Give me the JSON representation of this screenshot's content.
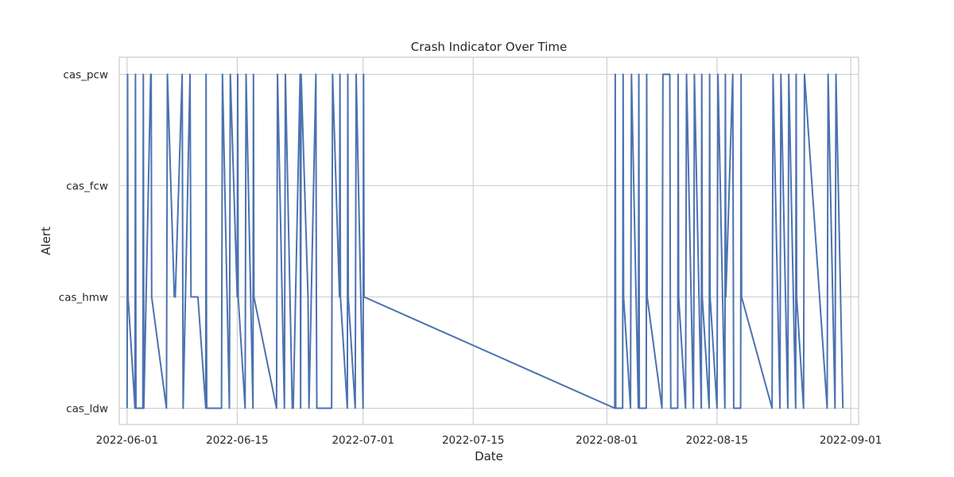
{
  "chart_data": {
    "type": "line",
    "title": "Crash Indicator Over Time",
    "xlabel": "Date",
    "ylabel": "Alert",
    "x_ticks": [
      "2022-06-01",
      "2022-06-15",
      "2022-07-01",
      "2022-07-15",
      "2022-08-01",
      "2022-08-15",
      "2022-09-01"
    ],
    "categories_y": [
      "cas_ldw",
      "cas_hmw",
      "cas_fcw",
      "cas_pcw"
    ],
    "x_range": [
      "2022-05-31",
      "2022-09-02"
    ],
    "grid": true,
    "line_color": "#4c72b0",
    "series": [
      {
        "x": [
          "2022-06-01",
          "2022-06-01",
          "2022-06-01",
          "2022-06-02",
          "2022-06-02",
          "2022-06-02",
          "2022-06-03",
          "2022-06-03",
          "2022-06-03",
          "2022-06-04",
          "2022-06-04",
          "2022-06-04",
          "2022-06-06",
          "2022-06-06",
          "2022-06-07",
          "2022-06-07",
          "2022-06-08",
          "2022-06-08",
          "2022-06-09",
          "2022-06-09",
          "2022-06-10",
          "2022-06-11",
          "2022-06-11",
          "2022-06-11",
          "2022-06-11",
          "2022-06-13",
          "2022-06-13",
          "2022-06-14",
          "2022-06-14",
          "2022-06-15",
          "2022-06-15",
          "2022-06-15",
          "2022-06-16",
          "2022-06-16",
          "2022-06-17",
          "2022-06-17",
          "2022-06-17",
          "2022-06-20",
          "2022-06-20",
          "2022-06-21",
          "2022-06-21",
          "2022-06-22",
          "2022-06-22",
          "2022-06-23",
          "2022-06-23",
          "2022-06-23",
          "2022-06-24",
          "2022-06-24",
          "2022-06-25",
          "2022-06-25",
          "2022-06-25",
          "2022-06-27",
          "2022-06-27",
          "2022-06-28",
          "2022-06-28",
          "2022-06-28",
          "2022-06-29",
          "2022-06-29",
          "2022-06-29",
          "2022-06-30",
          "2022-06-30",
          "2022-07-01",
          "2022-07-01",
          "2022-07-01",
          "2022-08-02",
          "2022-08-02",
          "2022-08-02",
          "2022-08-03",
          "2022-08-03",
          "2022-08-03",
          "2022-08-04",
          "2022-08-04",
          "2022-08-05",
          "2022-08-05",
          "2022-08-05",
          "2022-08-06",
          "2022-08-06",
          "2022-08-06",
          "2022-08-08",
          "2022-08-08",
          "2022-08-09",
          "2022-08-09",
          "2022-08-09",
          "2022-08-10",
          "2022-08-10",
          "2022-08-10",
          "2022-08-11",
          "2022-08-11",
          "2022-08-12",
          "2022-08-12",
          "2022-08-12",
          "2022-08-13",
          "2022-08-13",
          "2022-08-13",
          "2022-08-14",
          "2022-08-14",
          "2022-08-14",
          "2022-08-15",
          "2022-08-15",
          "2022-08-16",
          "2022-08-16",
          "2022-08-16",
          "2022-08-17",
          "2022-08-17",
          "2022-08-18",
          "2022-08-18",
          "2022-08-18",
          "2022-08-22",
          "2022-08-22",
          "2022-08-23",
          "2022-08-23",
          "2022-08-24",
          "2022-08-24",
          "2022-08-25",
          "2022-08-25",
          "2022-08-25",
          "2022-08-26",
          "2022-08-26",
          "2022-08-29",
          "2022-08-29",
          "2022-08-30",
          "2022-08-30",
          "2022-08-31"
        ],
        "y": [
          "cas_ldw",
          "cas_pcw",
          "cas_hmw",
          "cas_ldw",
          "cas_pcw",
          "cas_ldw",
          "cas_ldw",
          "cas_pcw",
          "cas_ldw",
          "cas_pcw",
          "cas_pcw",
          "cas_hmw",
          "cas_ldw",
          "cas_pcw",
          "cas_hmw",
          "cas_hmw",
          "cas_pcw",
          "cas_ldw",
          "cas_pcw",
          "cas_hmw",
          "cas_hmw",
          "cas_ldw",
          "cas_pcw",
          "cas_hmw",
          "cas_ldw",
          "cas_ldw",
          "cas_pcw",
          "cas_ldw",
          "cas_pcw",
          "cas_hmw",
          "cas_pcw",
          "cas_hmw",
          "cas_ldw",
          "cas_pcw",
          "cas_ldw",
          "cas_pcw",
          "cas_hmw",
          "cas_ldw",
          "cas_pcw",
          "cas_ldw",
          "cas_pcw",
          "cas_ldw",
          "cas_ldw",
          "cas_pcw",
          "cas_ldw",
          "cas_pcw",
          "cas_hmw",
          "cas_ldw",
          "cas_pcw",
          "cas_hmw",
          "cas_ldw",
          "cas_ldw",
          "cas_pcw",
          "cas_hmw",
          "cas_pcw",
          "cas_hmw",
          "cas_ldw",
          "cas_pcw",
          "cas_hmw",
          "cas_ldw",
          "cas_pcw",
          "cas_ldw",
          "cas_pcw",
          "cas_hmw",
          "cas_ldw",
          "cas_pcw",
          "cas_ldw",
          "cas_ldw",
          "cas_pcw",
          "cas_hmw",
          "cas_ldw",
          "cas_pcw",
          "cas_ldw",
          "cas_pcw",
          "cas_ldw",
          "cas_ldw",
          "cas_pcw",
          "cas_hmw",
          "cas_ldw",
          "cas_pcw",
          "cas_pcw",
          "cas_hmw",
          "cas_ldw",
          "cas_ldw",
          "cas_pcw",
          "cas_hmw",
          "cas_ldw",
          "cas_pcw",
          "cas_ldw",
          "cas_hmw",
          "cas_pcw",
          "cas_ldw",
          "cas_pcw",
          "cas_hmw",
          "cas_ldw",
          "cas_pcw",
          "cas_hmw",
          "cas_ldw",
          "cas_pcw",
          "cas_ldw",
          "cas_pcw",
          "cas_hmw",
          "cas_pcw",
          "cas_ldw",
          "cas_ldw",
          "cas_pcw",
          "cas_hmw",
          "cas_ldw",
          "cas_pcw",
          "cas_ldw",
          "cas_pcw",
          "cas_ldw",
          "cas_pcw",
          "cas_ldw",
          "cas_pcw",
          "cas_hmw",
          "cas_ldw",
          "cas_pcw",
          "cas_ldw",
          "cas_pcw",
          "cas_ldw",
          "cas_pcw",
          "cas_ldw"
        ]
      }
    ]
  }
}
